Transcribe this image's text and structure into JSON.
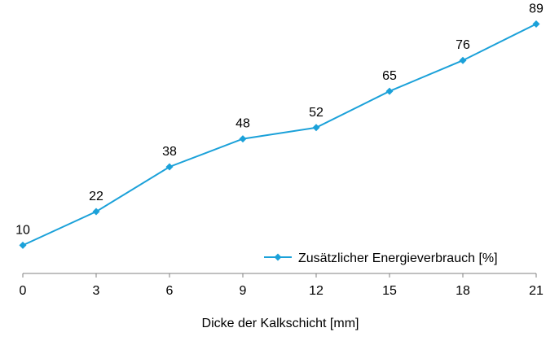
{
  "chart_data": {
    "type": "line",
    "title": "",
    "xlabel": "Dicke der Kalkschicht [mm]",
    "ylabel": "",
    "x": [
      0,
      3,
      6,
      9,
      12,
      15,
      18,
      21
    ],
    "xticks": [
      "0",
      "3",
      "6",
      "9",
      "12",
      "15",
      "18",
      "21"
    ],
    "xlim": [
      0,
      21
    ],
    "ylim": [
      0,
      100
    ],
    "grid": false,
    "legend_position": "bottom-right",
    "series": [
      {
        "name": "Zusätzlicher Energieverbrauch [%]",
        "values": [
          10,
          22,
          38,
          48,
          52,
          65,
          76,
          89
        ],
        "labels": [
          "10",
          "22",
          "38",
          "48",
          "52",
          "65",
          "76",
          "89"
        ],
        "color": "#1BA1D9",
        "marker": "diamond"
      }
    ]
  }
}
